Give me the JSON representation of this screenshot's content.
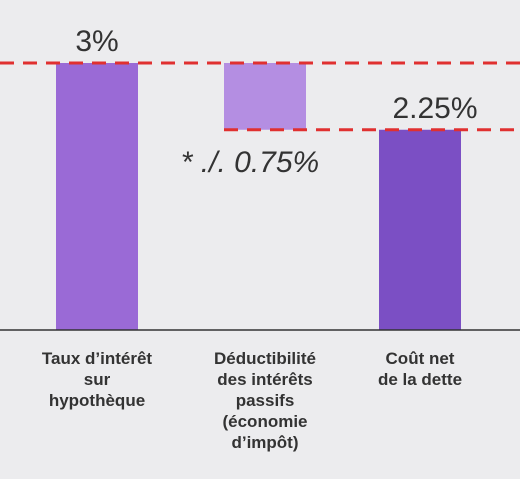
{
  "chart_data": {
    "type": "waterfall",
    "categories": [
      "Taux d’intérêt\nsur\nhypothèque",
      "Déductibilité\ndes intérêts\npassifs\n(économie\nd’impôt)",
      "Coût net\nde la dette"
    ],
    "values": [
      3,
      -0.75,
      2.25
    ],
    "value_labels": [
      "3%",
      "* ./. 0.75%",
      "2.25%"
    ],
    "colors": [
      "#9a6ad6",
      "#b48ee2",
      "#7b4fc4"
    ],
    "line_color": "#e03030"
  }
}
